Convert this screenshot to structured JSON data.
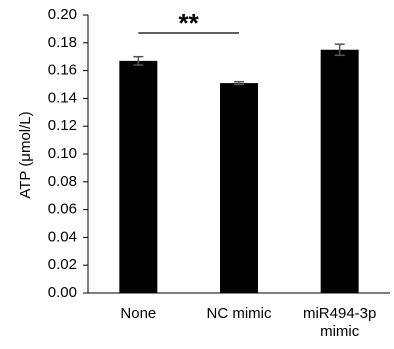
{
  "chart_data": {
    "type": "bar",
    "categories": [
      "None",
      "NC mimic",
      "miR494-3p\nmimic"
    ],
    "values": [
      0.167,
      0.151,
      0.175
    ],
    "errors": [
      0.003,
      0.001,
      0.004
    ],
    "title": "",
    "xlabel": "",
    "ylabel": "ATP (μmol/L)",
    "ylim": [
      0,
      0.2
    ],
    "yticks": [
      0.0,
      0.02,
      0.04,
      0.06,
      0.08,
      0.1,
      0.12,
      0.14,
      0.16,
      0.18,
      0.2
    ],
    "grid": false,
    "bar_color": "#000000",
    "annotations": [
      {
        "text": "**",
        "between": [
          "None",
          "NC mimic"
        ]
      }
    ]
  }
}
